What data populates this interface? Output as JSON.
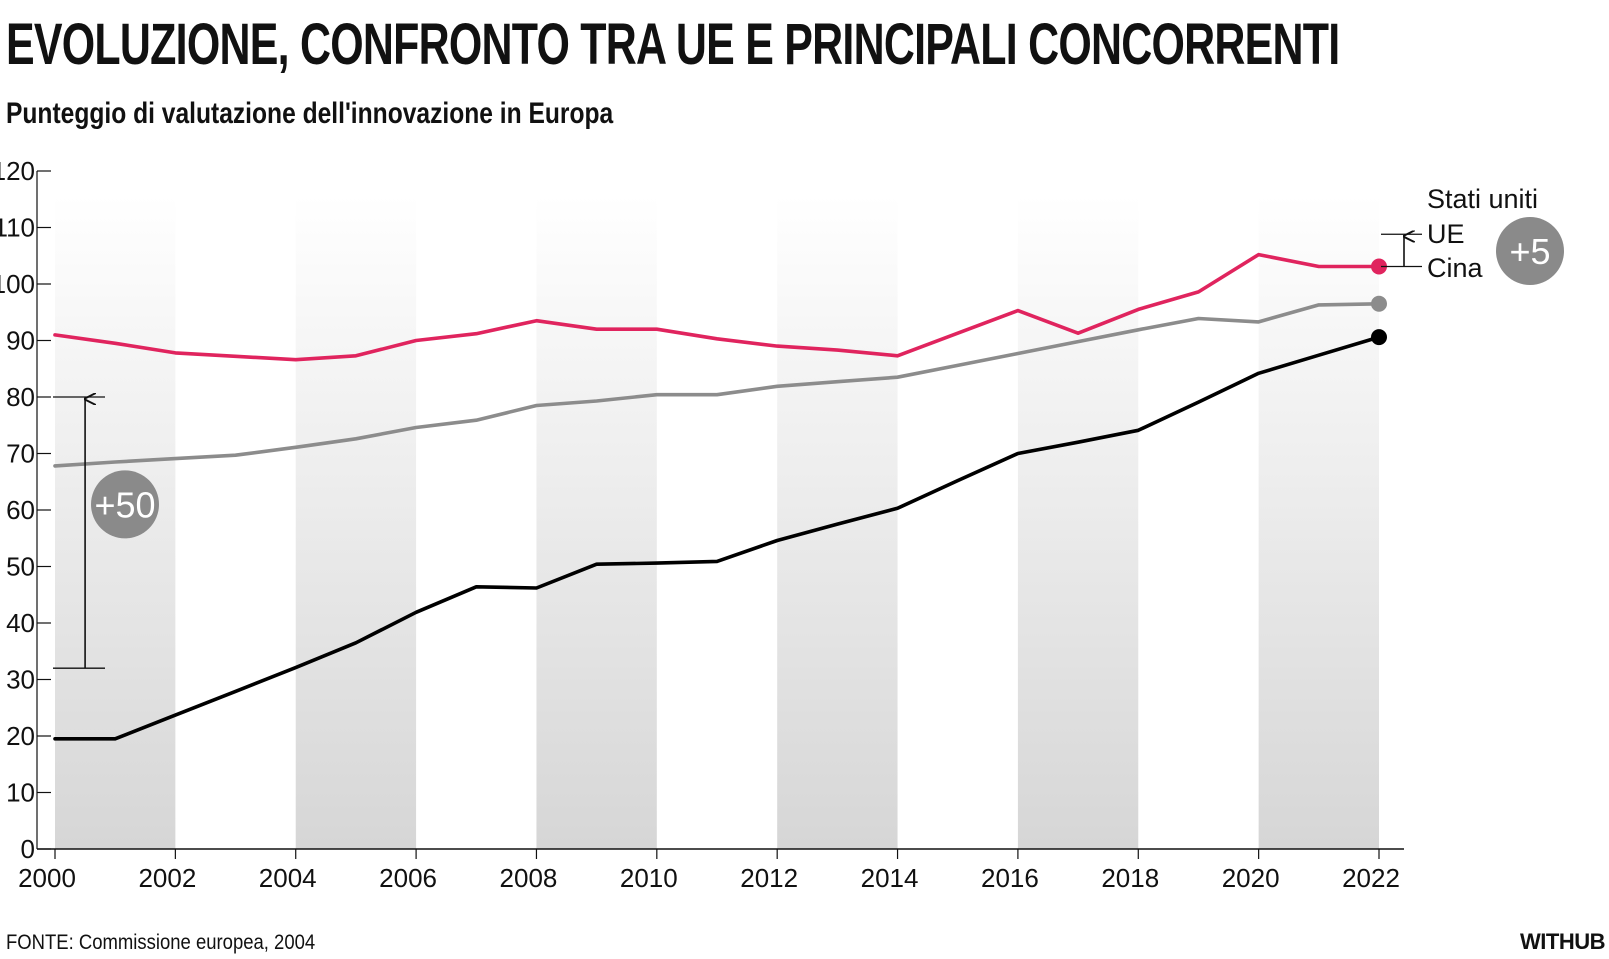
{
  "header": {
    "title": "EVOLUZIONE, CONFRONTO TRA UE E PRINCIPALI CONCORRENTI",
    "subtitle": "Punteggio di valutazione dell'innovazione in Europa"
  },
  "footer": {
    "source": "FONTE: Commissione europea, 2004",
    "brand": "WITHUB"
  },
  "colors": {
    "stati_uniti": "#e0245e",
    "ue": "#8c8c8c",
    "cina": "#000000",
    "badge": "#8a8a8a"
  },
  "chart_data": {
    "type": "line",
    "title": "EVOLUZIONE, CONFRONTO TRA UE E PRINCIPALI CONCORRENTI",
    "subtitle": "Punteggio di valutazione dell'innovazione in Europa",
    "xlabel": "",
    "ylabel": "",
    "x": [
      2000,
      2001,
      2002,
      2003,
      2004,
      2005,
      2006,
      2007,
      2008,
      2009,
      2010,
      2011,
      2012,
      2013,
      2014,
      2015,
      2016,
      2017,
      2018,
      2019,
      2020,
      2021,
      2022
    ],
    "xlim": [
      2000,
      2022
    ],
    "ylim": [
      0,
      120
    ],
    "xticks": [
      "2000",
      "2002",
      "2004",
      "2006",
      "2008",
      "2010",
      "2012",
      "2014",
      "2016",
      "2018",
      "2020",
      "2022"
    ],
    "yticks": [
      "0",
      "10",
      "20",
      "30",
      "40",
      "50",
      "60",
      "70",
      "80",
      "90",
      "100",
      "110",
      "120"
    ],
    "series": [
      {
        "name": "Stati uniti",
        "color": "#e0245e",
        "values": [
          91,
          89.5,
          87.8,
          87.2,
          86.6,
          87.3,
          90,
          91.2,
          93.5,
          92,
          92,
          90.3,
          89,
          88.3,
          87.3,
          91.3,
          95.3,
          91.3,
          95.5,
          98.6,
          105.2,
          103.1,
          103.1
        ]
      },
      {
        "name": "UE",
        "color": "#8c8c8c",
        "values": [
          67.8,
          68.5,
          69.1,
          69.7,
          71.1,
          72.6,
          74.6,
          75.9,
          78.5,
          79.3,
          80.4,
          80.4,
          81.9,
          82.7,
          83.5,
          85.6,
          87.7,
          89.8,
          91.9,
          93.9,
          93.3,
          96.3,
          96.5
        ]
      },
      {
        "name": "Cina",
        "color": "#000000",
        "values": [
          19.5,
          19.5,
          23.7,
          27.9,
          32.1,
          36.5,
          41.9,
          46.4,
          46.2,
          50.4,
          50.6,
          50.9,
          54.6,
          57.5,
          60.3,
          65.2,
          70,
          72,
          74.1,
          79.1,
          84.2,
          87.4,
          90.6
        ]
      }
    ],
    "annotations": [
      {
        "text": "+50",
        "from": 32,
        "to": 80,
        "at_year": 2000.5
      },
      {
        "text": "+5",
        "from": 103.1,
        "to": 108.8,
        "at_year": 2022
      }
    ],
    "legend": [
      "Stati uniti",
      "UE",
      "Cina"
    ],
    "legend_position": "right",
    "grid": false
  }
}
